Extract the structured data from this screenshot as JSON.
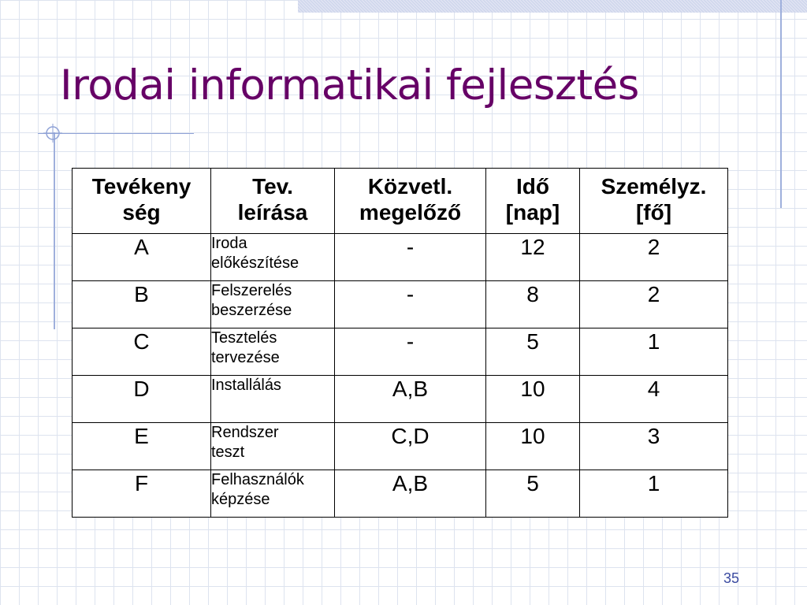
{
  "slide": {
    "title": "Irodai informatikai fejlesztés",
    "page_number": "35"
  },
  "table": {
    "headers": [
      "Tevékenység",
      "Tev. leírása",
      "Közvetl. megelőző",
      "Idő [nap]",
      "Személyz. [fő]"
    ],
    "rows": [
      {
        "id": "A",
        "description": "Iroda előkészítése",
        "predecessor": "-",
        "duration": "12",
        "staff": "2"
      },
      {
        "id": "B",
        "description": "Felszerelés beszerzése",
        "predecessor": "-",
        "duration": "8",
        "staff": "2"
      },
      {
        "id": "C",
        "description": "Tesztelés tervezése",
        "predecessor": "-",
        "duration": "5",
        "staff": "1"
      },
      {
        "id": "D",
        "description": "Installálás",
        "predecessor": "A,B",
        "duration": "10",
        "staff": "4"
      },
      {
        "id": "E",
        "description": "Rendszer teszt",
        "predecessor": "C,D",
        "duration": "10",
        "staff": "3"
      },
      {
        "id": "F",
        "description": "Felhasználók képzése",
        "predecessor": "A,B",
        "duration": "5",
        "staff": "1"
      }
    ]
  },
  "colors": {
    "title": "#660066",
    "accent_lines": "#9fb0dc",
    "page_number": "#3a4aa0"
  }
}
